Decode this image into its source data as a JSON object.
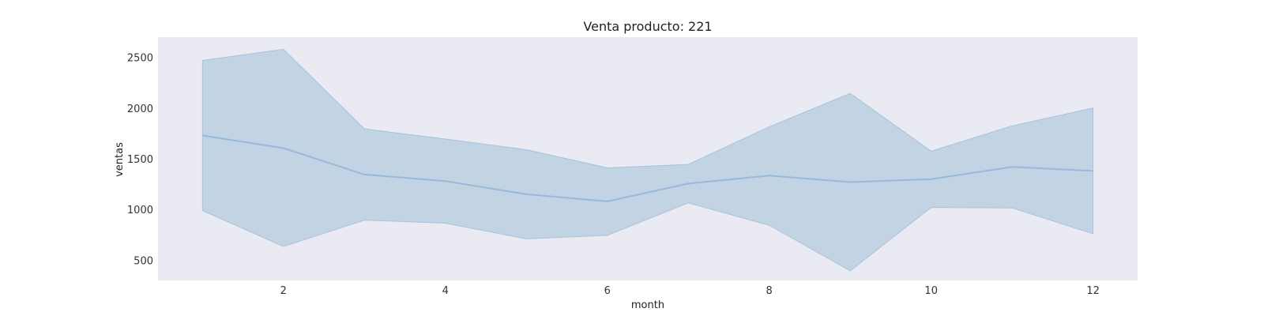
{
  "chart_data": {
    "type": "line",
    "title": "Venta producto: 221",
    "xlabel": "month",
    "ylabel": "ventas",
    "xlim": [
      0.45,
      12.55
    ],
    "ylim": [
      300,
      2700
    ],
    "xticks": [
      2,
      4,
      6,
      8,
      10,
      12
    ],
    "yticks": [
      500,
      1000,
      1500,
      2000,
      2500
    ],
    "grid": false,
    "legend": "none",
    "background": "#eaeaf2",
    "line_color": "#98b9d9",
    "band_color": "#c2d3e4",
    "band_edge_color": "#a9c2dc",
    "series": [
      {
        "x": [
          1,
          2,
          3,
          4,
          5,
          6,
          7,
          8,
          9,
          10,
          11,
          12
        ],
        "values": [
          1730,
          1605,
          1345,
          1280,
          1150,
          1080,
          1255,
          1335,
          1270,
          1300,
          1420,
          1380
        ],
        "band_upper": [
          2470,
          2580,
          1795,
          1695,
          1590,
          1410,
          1445,
          1815,
          2145,
          1575,
          1825,
          2000
        ],
        "band_lower": [
          990,
          635,
          895,
          865,
          710,
          745,
          1065,
          845,
          395,
          1020,
          1015,
          760
        ]
      }
    ]
  }
}
